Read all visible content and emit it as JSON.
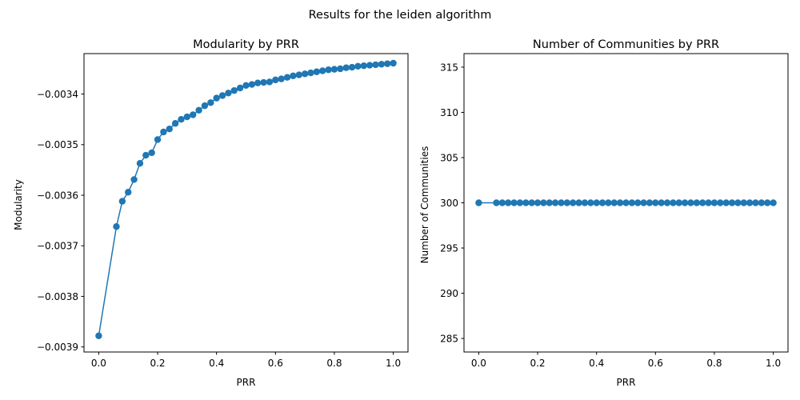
{
  "suptitle": "Results for the leiden algorithm",
  "chart_data": [
    {
      "type": "line",
      "title": "Modularity by PRR",
      "xlabel": "PRR",
      "ylabel": "Modularity",
      "xlim": [
        -0.05,
        1.05
      ],
      "ylim": [
        -0.00391,
        -0.00332
      ],
      "xticks": [
        0.0,
        0.2,
        0.4,
        0.6,
        0.8,
        1.0
      ],
      "xtick_labels": [
        "0.0",
        "0.2",
        "0.4",
        "0.6",
        "0.8",
        "1.0"
      ],
      "yticks": [
        -0.0039,
        -0.0038,
        -0.0037,
        -0.0036,
        -0.0035,
        -0.0034
      ],
      "ytick_labels": [
        "−0.0039",
        "−0.0038",
        "−0.0037",
        "−0.0036",
        "−0.0035",
        "−0.0034"
      ],
      "marker": "circle",
      "color": "#1f77b4",
      "grid": false,
      "series": [
        {
          "x": [
            0.0,
            0.06,
            0.08,
            0.1,
            0.12,
            0.14,
            0.16,
            0.18,
            0.2,
            0.22,
            0.24,
            0.26,
            0.28,
            0.3,
            0.32,
            0.34,
            0.36,
            0.38,
            0.4,
            0.42,
            0.44,
            0.46,
            0.48,
            0.5,
            0.52,
            0.54,
            0.56,
            0.58,
            0.6,
            0.62,
            0.64,
            0.66,
            0.68,
            0.7,
            0.72,
            0.74,
            0.76,
            0.78,
            0.8,
            0.82,
            0.84,
            0.86,
            0.88,
            0.9,
            0.92,
            0.94,
            0.96,
            0.98,
            1.0
          ],
          "values": [
            -0.003878,
            -0.003662,
            -0.003612,
            -0.003594,
            -0.003569,
            -0.003537,
            -0.003521,
            -0.003516,
            -0.00349,
            -0.003475,
            -0.003469,
            -0.003458,
            -0.00345,
            -0.003445,
            -0.003441,
            -0.003432,
            -0.003423,
            -0.003417,
            -0.003408,
            -0.003403,
            -0.003398,
            -0.003393,
            -0.003388,
            -0.003383,
            -0.003381,
            -0.003378,
            -0.003377,
            -0.003376,
            -0.003372,
            -0.00337,
            -0.003367,
            -0.003364,
            -0.003362,
            -0.00336,
            -0.003358,
            -0.003356,
            -0.003354,
            -0.003352,
            -0.003351,
            -0.00335,
            -0.003348,
            -0.003347,
            -0.003345,
            -0.003344,
            -0.003343,
            -0.003342,
            -0.003341,
            -0.00334,
            -0.003339
          ]
        }
      ]
    },
    {
      "type": "line",
      "title": "Number of Communities by PRR",
      "xlabel": "PRR",
      "ylabel": "Number of Communities",
      "xlim": [
        -0.05,
        1.05
      ],
      "ylim": [
        283.5,
        316.5
      ],
      "xticks": [
        0.0,
        0.2,
        0.4,
        0.6,
        0.8,
        1.0
      ],
      "xtick_labels": [
        "0.0",
        "0.2",
        "0.4",
        "0.6",
        "0.8",
        "1.0"
      ],
      "yticks": [
        285,
        290,
        295,
        300,
        305,
        310,
        315
      ],
      "ytick_labels": [
        "285",
        "290",
        "295",
        "300",
        "305",
        "310",
        "315"
      ],
      "marker": "circle",
      "color": "#1f77b4",
      "grid": false,
      "series": [
        {
          "x": [
            0.0,
            0.06,
            0.08,
            0.1,
            0.12,
            0.14,
            0.16,
            0.18,
            0.2,
            0.22,
            0.24,
            0.26,
            0.28,
            0.3,
            0.32,
            0.34,
            0.36,
            0.38,
            0.4,
            0.42,
            0.44,
            0.46,
            0.48,
            0.5,
            0.52,
            0.54,
            0.56,
            0.58,
            0.6,
            0.62,
            0.64,
            0.66,
            0.68,
            0.7,
            0.72,
            0.74,
            0.76,
            0.78,
            0.8,
            0.82,
            0.84,
            0.86,
            0.88,
            0.9,
            0.92,
            0.94,
            0.96,
            0.98,
            1.0
          ],
          "values": [
            300,
            300,
            300,
            300,
            300,
            300,
            300,
            300,
            300,
            300,
            300,
            300,
            300,
            300,
            300,
            300,
            300,
            300,
            300,
            300,
            300,
            300,
            300,
            300,
            300,
            300,
            300,
            300,
            300,
            300,
            300,
            300,
            300,
            300,
            300,
            300,
            300,
            300,
            300,
            300,
            300,
            300,
            300,
            300,
            300,
            300,
            300,
            300,
            300
          ]
        }
      ]
    }
  ]
}
